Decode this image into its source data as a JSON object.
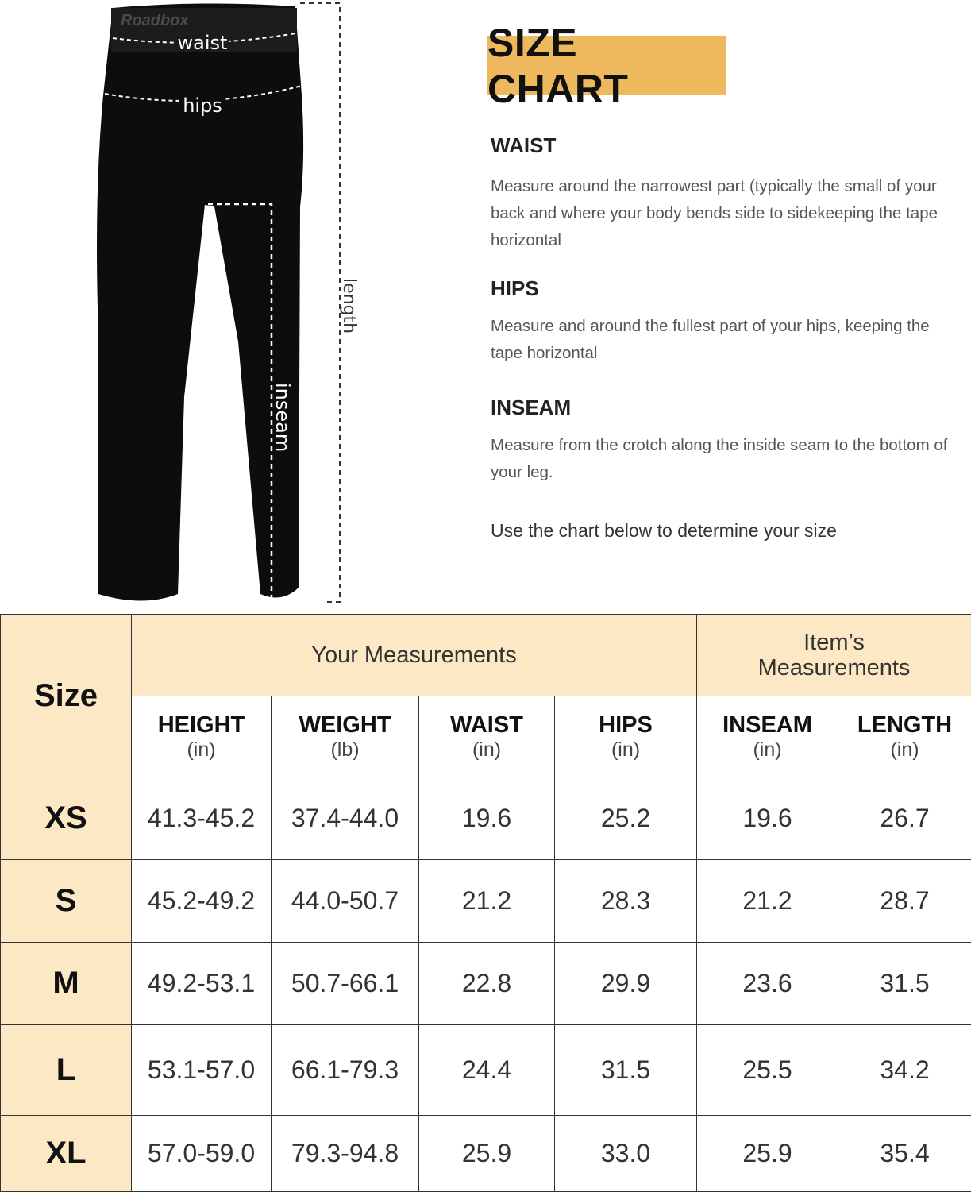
{
  "illustration": {
    "brand_watermark": "Roadbox",
    "labels": {
      "waist": "waist",
      "hips": "hips",
      "length": "length",
      "inseam": "inseam"
    }
  },
  "title": "SIZE CHART",
  "sections": [
    {
      "heading": "WAIST",
      "text": "Measure around the narrowest part (typically the small of your back and where your body bends side to sidekeeping the tape horizontal"
    },
    {
      "heading": "HIPS",
      "text": "Measure and around the fullest part of your  hips, keeping the tape horizontal"
    },
    {
      "heading": "INSEAM",
      "text": "Measure from the crotch along the inside seam to the bottom of your leg."
    }
  ],
  "instruction": "Use the chart below to determine your size",
  "colors": {
    "title_bg": "#eeb95c",
    "header_bg": "#fde8c6"
  },
  "table": {
    "size_header": "Size",
    "group_your": "Your Measurements",
    "group_item": "Item’s Measurements",
    "columns": [
      {
        "name": "HEIGHT",
        "unit": "(in)"
      },
      {
        "name": "WEIGHT",
        "unit": "(lb)"
      },
      {
        "name": "WAIST",
        "unit": "(in)"
      },
      {
        "name": "HIPS",
        "unit": "(in)"
      },
      {
        "name": "INSEAM",
        "unit": "(in)"
      },
      {
        "name": "LENGTH",
        "unit": "(in)"
      }
    ],
    "rows": [
      {
        "size": "XS",
        "values": [
          "41.3-45.2",
          "37.4-44.0",
          "19.6",
          "25.2",
          "19.6",
          "26.7"
        ]
      },
      {
        "size": "S",
        "values": [
          "45.2-49.2",
          "44.0-50.7",
          "21.2",
          "28.3",
          "21.2",
          "28.7"
        ]
      },
      {
        "size": "M",
        "values": [
          "49.2-53.1",
          "50.7-66.1",
          "22.8",
          "29.9",
          "23.6",
          "31.5"
        ]
      },
      {
        "size": "L",
        "values": [
          "53.1-57.0",
          "66.1-79.3",
          "24.4",
          "31.5",
          "25.5",
          "34.2"
        ]
      },
      {
        "size": "XL",
        "values": [
          "57.0-59.0",
          "79.3-94.8",
          "25.9",
          "33.0",
          "25.9",
          "35.4"
        ]
      }
    ]
  }
}
